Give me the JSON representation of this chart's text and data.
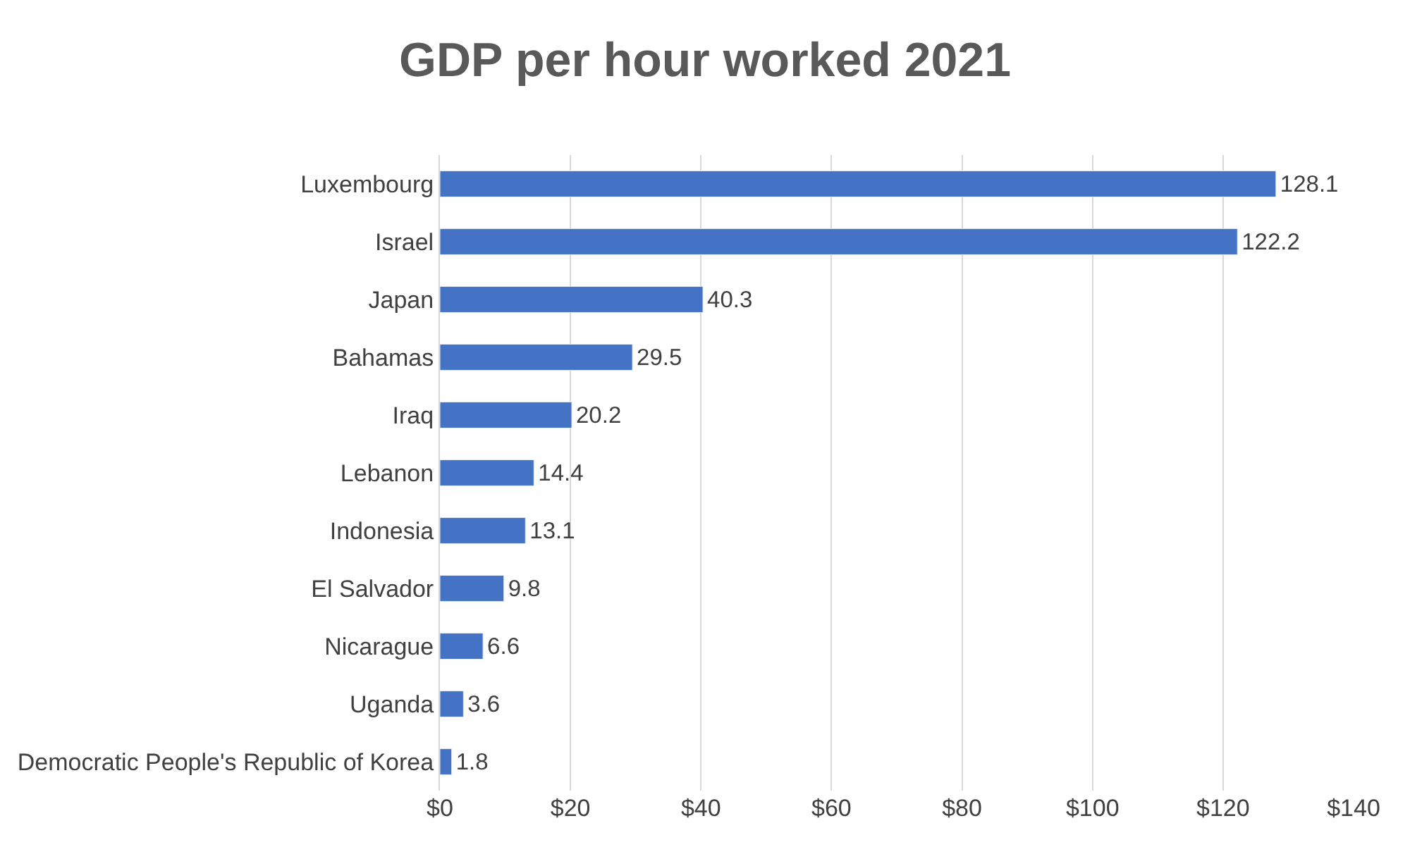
{
  "chart_data": {
    "type": "bar",
    "orientation": "horizontal",
    "title": "GDP per hour worked 2021",
    "categories": [
      "Luxembourg",
      "Israel",
      "Japan",
      "Bahamas",
      "Iraq",
      "Lebanon",
      "Indonesia",
      "El Salvador",
      "Nicarague",
      "Uganda",
      "Democratic People's Republic of Korea"
    ],
    "values": [
      128.1,
      122.2,
      40.3,
      29.5,
      20.2,
      14.4,
      13.1,
      9.8,
      6.6,
      3.6,
      1.8
    ],
    "color": "#4472c4",
    "xlim": [
      0,
      140
    ],
    "xticks": [
      {
        "value": 0,
        "label": "$0"
      },
      {
        "value": 20,
        "label": "$20"
      },
      {
        "value": 40,
        "label": "$40"
      },
      {
        "value": 60,
        "label": "$60"
      },
      {
        "value": 80,
        "label": "$80"
      },
      {
        "value": 100,
        "label": "$100"
      },
      {
        "value": 120,
        "label": "$120"
      },
      {
        "value": 140,
        "label": "$140"
      }
    ],
    "grid": "x",
    "data_labels": true
  }
}
